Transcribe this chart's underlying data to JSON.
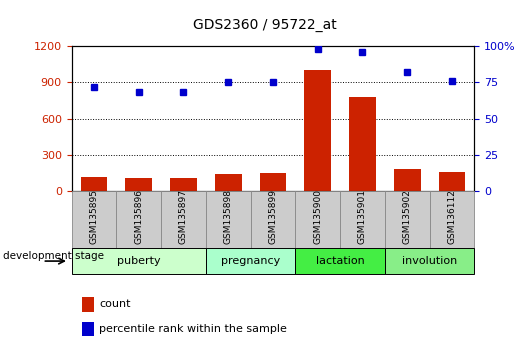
{
  "title": "GDS2360 / 95722_at",
  "samples": [
    "GSM135895",
    "GSM135896",
    "GSM135897",
    "GSM135898",
    "GSM135899",
    "GSM135900",
    "GSM135901",
    "GSM135902",
    "GSM136112"
  ],
  "counts": [
    120,
    110,
    110,
    145,
    150,
    1000,
    780,
    180,
    155
  ],
  "percentile_ranks": [
    72,
    68,
    68,
    75,
    75,
    98,
    96,
    82,
    76
  ],
  "ylim_left": [
    0,
    1200
  ],
  "ylim_right": [
    0,
    100
  ],
  "yticks_left": [
    0,
    300,
    600,
    900,
    1200
  ],
  "yticks_right": [
    0,
    25,
    50,
    75,
    100
  ],
  "ytick_labels_right": [
    "0",
    "25",
    "50",
    "75",
    "100%"
  ],
  "bar_color": "#cc2200",
  "dot_color": "#0000cc",
  "stages": [
    {
      "label": "puberty",
      "start": 0,
      "end": 3,
      "color": "#ccffcc"
    },
    {
      "label": "pregnancy",
      "start": 3,
      "end": 5,
      "color": "#aaffcc"
    },
    {
      "label": "lactation",
      "start": 5,
      "end": 7,
      "color": "#44ee44"
    },
    {
      "label": "involution",
      "start": 7,
      "end": 9,
      "color": "#88ee88"
    }
  ],
  "dev_stage_label": "development stage",
  "legend_count_label": "count",
  "legend_pct_label": "percentile rank within the sample",
  "grid_linestyle": "dotted",
  "axis_color_left": "#cc2200",
  "axis_color_right": "#0000cc",
  "bg_plot": "#ffffff",
  "bg_figure": "#ffffff",
  "sample_bg_color": "#cccccc",
  "sample_border_color": "#888888",
  "title_fontsize": 10,
  "tick_fontsize": 8,
  "label_fontsize": 8,
  "stage_fontsize": 8
}
